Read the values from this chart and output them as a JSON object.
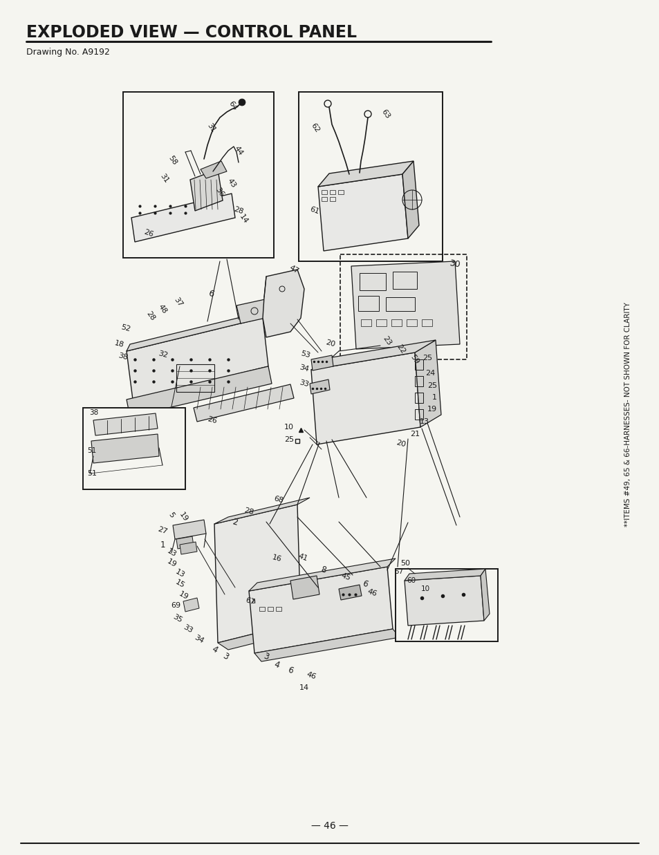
{
  "title": "EXPLODED VIEW — CONTROL PANEL",
  "drawing_no": "Drawing No. A9192",
  "page_number": "— 46 —",
  "side_note": "**ITEMS #49, 65 & 66-HARNESSES- NOT SHOWN FOR CLARITY",
  "bg_color": "#f5f5f0",
  "line_color": "#1a1a1a",
  "title_fontsize": 17,
  "subtitle_fontsize": 9,
  "label_fontsize": 8
}
